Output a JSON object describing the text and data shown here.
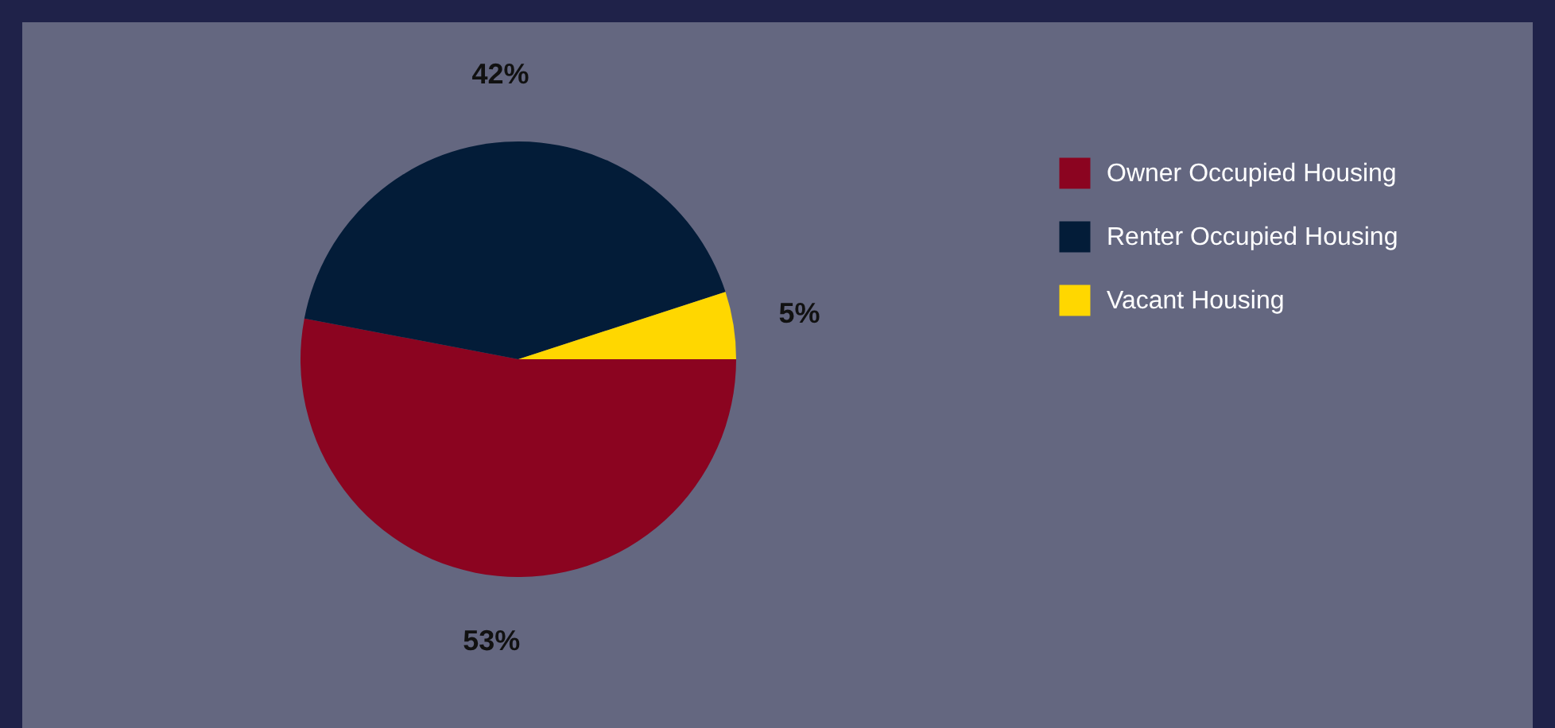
{
  "chart_data": {
    "type": "pie",
    "categories": [
      "Owner Occupied Housing",
      "Renter Occupied Housing",
      "Vacant Housing"
    ],
    "values": [
      53,
      42,
      5
    ],
    "colors": [
      "#8b0420",
      "#031c38",
      "#ffd700"
    ],
    "value_labels": [
      "53%",
      "42%",
      "5%"
    ],
    "legend": "right"
  }
}
